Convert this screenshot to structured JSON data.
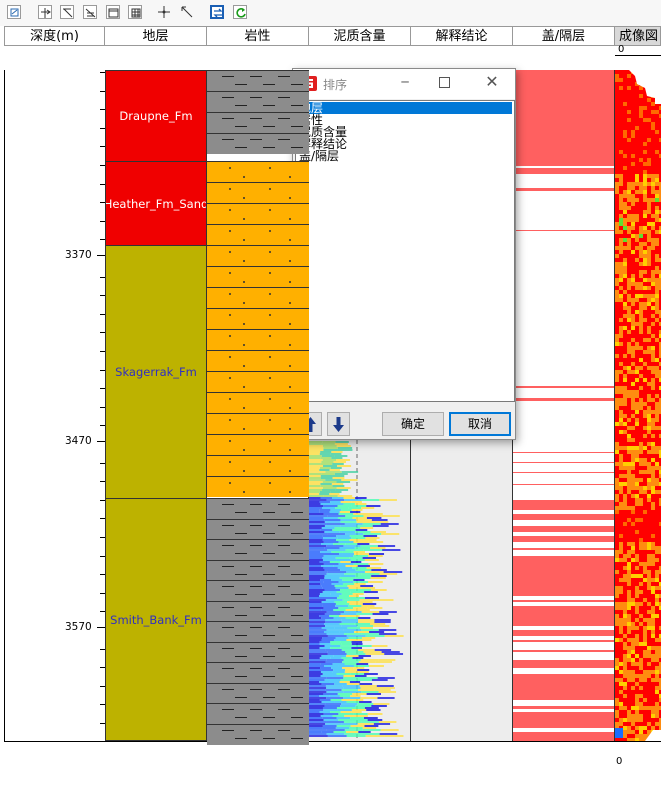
{
  "headers": {
    "depth": "深度(m)",
    "formation": "地层",
    "lithology": "岩性",
    "shale_content": "泥质含量",
    "interpretation": "解释结论",
    "seal": "盖/隔层",
    "image": "成像図"
  },
  "image_track": {
    "scale_top": "0",
    "scale_bottom": "0"
  },
  "depth_track": {
    "labels": [
      "3370",
      "3470",
      "3570"
    ]
  },
  "formations": [
    {
      "name": "Draupne_Fm",
      "color": "#f00000",
      "text_color": "#ffffff"
    },
    {
      "name": "Heather_Fm_Sand",
      "color": "#f00000",
      "text_color": "#ffffff"
    },
    {
      "name": "Skagerrak_Fm",
      "color": "#bdb200",
      "text_color": "#3030c0"
    },
    {
      "name": "Smith_Bank_Fm",
      "color": "#bdb200",
      "text_color": "#3030c0"
    }
  ],
  "dialog": {
    "title": "排序",
    "items": [
      "地层",
      "岩性",
      "泥质含量",
      "解释结论",
      "盖/隔层"
    ],
    "selected_index": 0,
    "up_icon": "arrow-up-icon",
    "down_icon": "arrow-down-icon",
    "ok_label": "确定",
    "cancel_label": "取消"
  },
  "toolbar": {
    "icons": [
      "zoom-fit-icon",
      "vertical-split-icon",
      "diagonal-cut-icon",
      "list-down-icon",
      "window-icon",
      "grid-icon",
      "crosshair-icon",
      "diagonal-line-icon",
      "swap-icon",
      "refresh-icon"
    ]
  },
  "colors": {
    "accent": "#0078d7",
    "seal_red": "#ff6060",
    "sand": "#ffb000",
    "shale": "#8c8c8c"
  }
}
